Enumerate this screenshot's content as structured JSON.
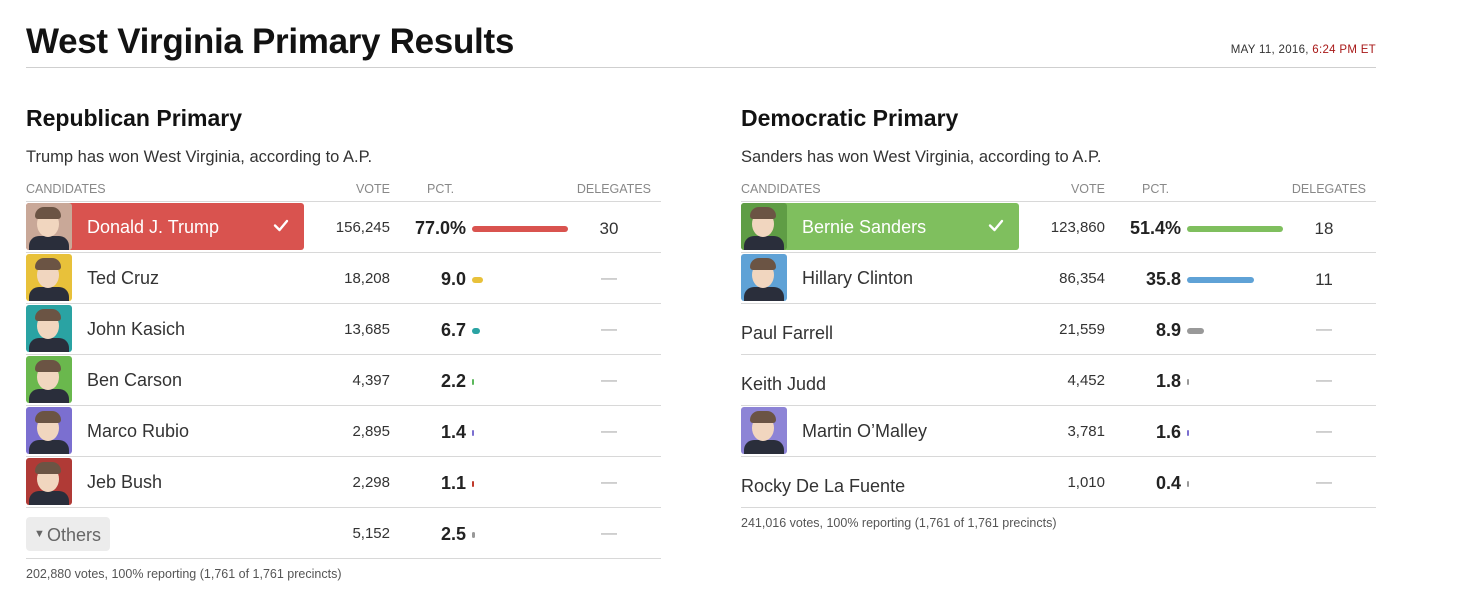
{
  "header": {
    "title": "West Virginia Primary Results",
    "date": "MAY 11, 2016,",
    "time": "6:24 PM ET"
  },
  "columns": {
    "candidates": "CANDIDATES",
    "vote": "VOTE",
    "pct": "PCT.",
    "delegates": "DELEGATES"
  },
  "republican": {
    "title": "Republican Primary",
    "summary": "Trump has won West Virginia, according to A.P.",
    "winner_color": "#d9534f",
    "candidates": [
      {
        "name": "Donald J. Trump",
        "votes": "156,245",
        "pct": "77.0%",
        "pct_value": 77.0,
        "delegates": "30",
        "bar_color": "#d9534f",
        "photo_bg": "#c9a898"
      },
      {
        "name": "Ted Cruz",
        "votes": "18,208",
        "pct": "9.0",
        "pct_value": 9.0,
        "delegates": "—",
        "bar_color": "#e8c13a",
        "photo_bg": "#e8c13a"
      },
      {
        "name": "John Kasich",
        "votes": "13,685",
        "pct": "6.7",
        "pct_value": 6.7,
        "delegates": "—",
        "bar_color": "#2aa3a3",
        "photo_bg": "#2aa3a3"
      },
      {
        "name": "Ben Carson",
        "votes": "4,397",
        "pct": "2.2",
        "pct_value": 2.2,
        "delegates": "—",
        "bar_color": "#5cb85c",
        "photo_bg": "#6ab84d"
      },
      {
        "name": "Marco Rubio",
        "votes": "2,895",
        "pct": "1.4",
        "pct_value": 1.4,
        "delegates": "—",
        "bar_color": "#7b6fd0",
        "photo_bg": "#7b6fd0"
      },
      {
        "name": "Jeb Bush",
        "votes": "2,298",
        "pct": "1.1",
        "pct_value": 1.1,
        "delegates": "—",
        "bar_color": "#c0392b",
        "photo_bg": "#b03a36"
      }
    ],
    "others": {
      "label": "Others",
      "votes": "5,152",
      "pct": "2.5",
      "pct_value": 2.5,
      "delegates": "—",
      "bar_color": "#999999"
    },
    "footer": "202,880 votes, 100% reporting (1,761 of 1,761 precincts)"
  },
  "democratic": {
    "title": "Democratic Primary",
    "summary": "Sanders has won West Virginia, according to A.P.",
    "winner_color": "#7fbf5e",
    "candidates": [
      {
        "name": "Bernie Sanders",
        "votes": "123,860",
        "pct": "51.4%",
        "pct_value": 51.4,
        "delegates": "18",
        "bar_color": "#7fbf5e",
        "photo_bg": "#5f9d45",
        "has_photo": true
      },
      {
        "name": "Hillary Clinton",
        "votes": "86,354",
        "pct": "35.8",
        "pct_value": 35.8,
        "delegates": "11",
        "bar_color": "#5fa2d6",
        "photo_bg": "#5fa2d6",
        "has_photo": true
      },
      {
        "name": "Paul Farrell",
        "votes": "21,559",
        "pct": "8.9",
        "pct_value": 8.9,
        "delegates": "—",
        "bar_color": "#999999",
        "has_photo": false
      },
      {
        "name": "Keith Judd",
        "votes": "4,452",
        "pct": "1.8",
        "pct_value": 1.8,
        "delegates": "—",
        "bar_color": "#999999",
        "has_photo": false
      },
      {
        "name": "Martin O’Malley",
        "votes": "3,781",
        "pct": "1.6",
        "pct_value": 1.6,
        "delegates": "—",
        "bar_color": "#7b6fd0",
        "photo_bg": "#8d84d6",
        "has_photo": true
      },
      {
        "name": "Rocky De La Fuente",
        "votes": "1,010",
        "pct": "0.4",
        "pct_value": 0.4,
        "delegates": "—",
        "bar_color": "#999999",
        "has_photo": false
      }
    ],
    "footer": "241,016 votes, 100% reporting (1,761 of 1,761 precincts)"
  }
}
